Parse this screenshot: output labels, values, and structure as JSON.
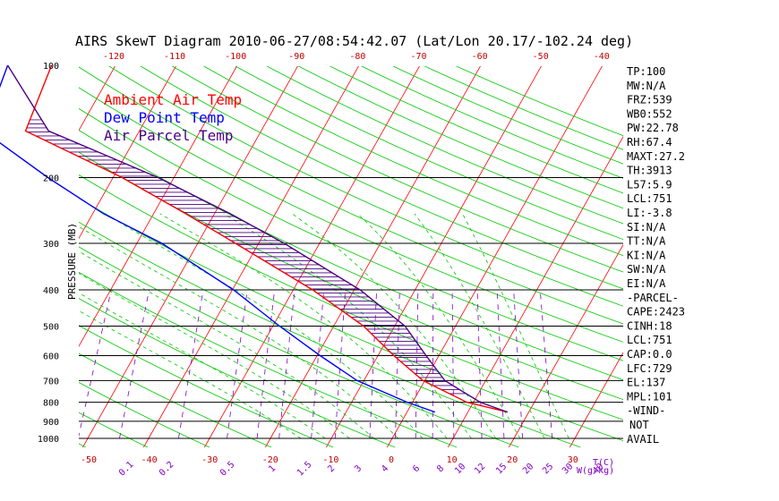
{
  "chart_data": {
    "type": "line",
    "title": "AIRS SkewT Diagram 2010-06-27/08:54:42.07 (Lat/Lon 20.17/-102.24 deg)",
    "ylabel": "PRESSURE (MB)",
    "xlabel": "T(C)",
    "mixing_ratio_label": "W(g/kg)",
    "colors": {
      "ambient": "#ff0000",
      "dewpoint": "#0000ff",
      "parcel": "#4b0082",
      "isotherm": "#ff0000",
      "dry_adiabat": "#00c800",
      "mixing_ratio": "#8000c0",
      "moist_adiabat": "#00c800",
      "isobar": "#000000"
    },
    "x_range": [
      -50,
      40
    ],
    "pressure_levels": [
      100,
      200,
      300,
      400,
      500,
      600,
      700,
      800,
      900,
      1000
    ],
    "bottom_ticks": [
      "-50",
      "-40",
      "-30",
      "-20",
      "-10",
      "0",
      "10",
      "20",
      "30"
    ],
    "top_ticks": [
      "-120",
      "-110",
      "-100",
      "-90",
      "-80",
      "-70",
      "-60",
      "-50",
      "-40"
    ],
    "mixing_ratios": [
      "0.1",
      "0.2",
      "0.5",
      "1",
      "1.5",
      "2",
      "3",
      "4",
      "6",
      "8",
      "10",
      "12",
      "15",
      "20",
      "25",
      "30",
      "40"
    ],
    "legend": [
      {
        "name": "Ambient Air Temp",
        "color": "#ff0000"
      },
      {
        "name": "Dew Point Temp",
        "color": "#0000ff"
      },
      {
        "name": "Air Parcel Temp",
        "color": "#4b0082"
      }
    ],
    "series": [
      {
        "name": "Ambient Air Temp",
        "points": [
          {
            "p": 100,
            "t": -80.5
          },
          {
            "p": 150,
            "t": -78.7
          },
          {
            "p": 200,
            "t": -58.5
          },
          {
            "p": 250,
            "t": -44.7
          },
          {
            "p": 300,
            "t": -33.8
          },
          {
            "p": 400,
            "t": -16.8
          },
          {
            "p": 500,
            "t": -5.1
          },
          {
            "p": 600,
            "t": 2.6
          },
          {
            "p": 700,
            "t": 9.7
          },
          {
            "p": 800,
            "t": 18.9
          },
          {
            "p": 850,
            "t": 26.5
          }
        ]
      },
      {
        "name": "Dew Point Temp",
        "points": [
          {
            "p": 100,
            "t": -87.7
          },
          {
            "p": 150,
            "t": -85.6
          },
          {
            "p": 200,
            "t": -70.7
          },
          {
            "p": 250,
            "t": -58.2
          },
          {
            "p": 300,
            "t": -45.9
          },
          {
            "p": 400,
            "t": -29.8
          },
          {
            "p": 500,
            "t": -18.9
          },
          {
            "p": 600,
            "t": -9.5
          },
          {
            "p": 700,
            "t": -1.1
          },
          {
            "p": 800,
            "t": 9.1
          },
          {
            "p": 850,
            "t": 14.6
          }
        ]
      },
      {
        "name": "Air Parcel Temp",
        "points": [
          {
            "p": 100,
            "t": -87.7
          },
          {
            "p": 150,
            "t": -74.9
          },
          {
            "p": 200,
            "t": -52.6
          },
          {
            "p": 250,
            "t": -37.4
          },
          {
            "p": 300,
            "t": -25.8
          },
          {
            "p": 400,
            "t": -9.0
          },
          {
            "p": 500,
            "t": 1.7
          },
          {
            "p": 600,
            "t": 7.9
          },
          {
            "p": 700,
            "t": 13.3
          },
          {
            "p": 800,
            "t": 21.1
          },
          {
            "p": 850,
            "t": 26.5
          }
        ]
      }
    ]
  },
  "stats": [
    "TP:100",
    "MW:N/A",
    "FRZ:539",
    "WB0:552",
    "PW:22.78",
    "RH:67.4",
    "MAXT:27.2",
    "TH:3913",
    "L57:5.9",
    "LCL:751",
    "LI:-3.8",
    "SI:N/A",
    "TT:N/A",
    "KI:N/A",
    "SW:N/A",
    "EI:N/A",
    "-PARCEL-",
    "CAPE:2423",
    "CINH:18",
    "LCL:751",
    "CAP:0.0",
    "LFC:729",
    "EL:137",
    "MPL:101",
    "-WIND-",
    "NOT",
    "AVAIL"
  ]
}
